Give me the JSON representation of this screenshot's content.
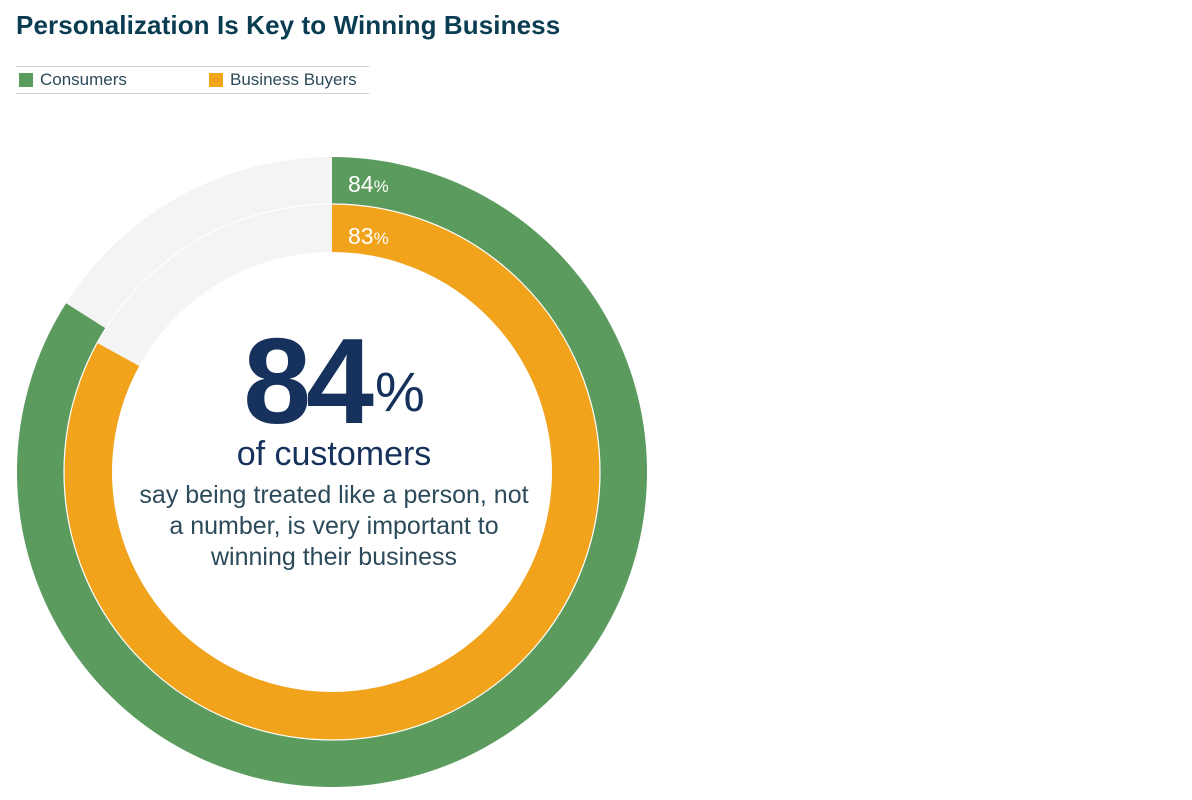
{
  "chart_data": {
    "type": "pie",
    "variant": "nested-donut",
    "title": "Personalization Is Key to Winning Business",
    "legend_position": "top-left",
    "series": [
      {
        "name": "Consumers",
        "value": 84,
        "label": "84",
        "unit": "%",
        "color": "#5c9b5e"
      },
      {
        "name": "Business Buyers",
        "value": 83,
        "label": "83",
        "unit": "%",
        "color": "#f0a31b"
      }
    ],
    "remainder_color": "#f5f4f4",
    "center": {
      "value": "84",
      "unit": "%",
      "subhead": "of customers",
      "body": "say being treated like a person, not a number, is very important to winning their business"
    }
  }
}
